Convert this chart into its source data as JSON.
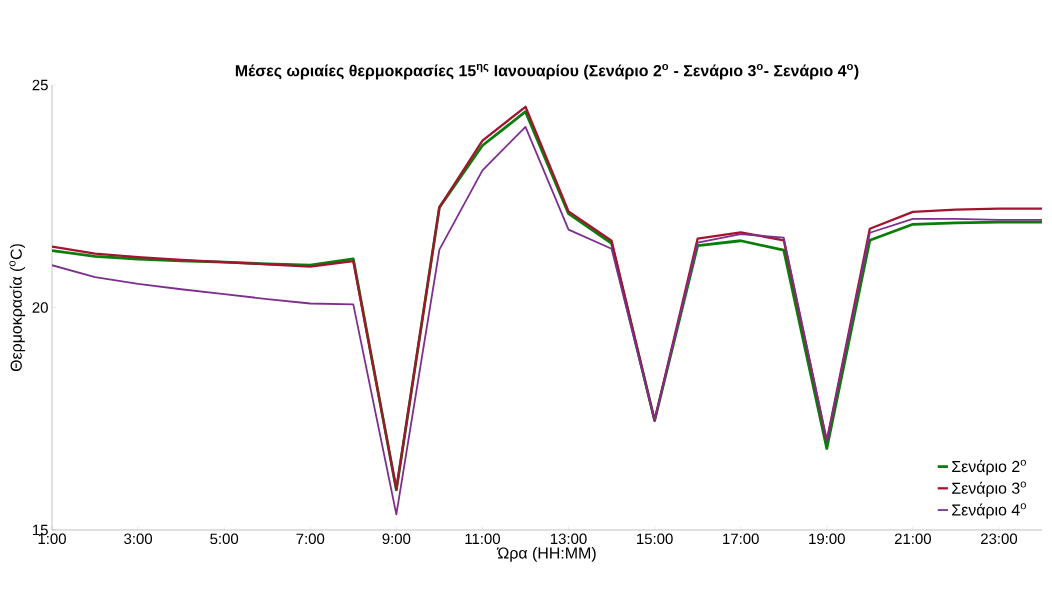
{
  "chart_data": {
    "type": "line",
    "title": "Μέσες ωριαίες θερμοκρασίες 15$^{ης}$ Ιανουαρίου (Σενάριο 2$^{o}$ - Σενάριο 3$^{o}$- Σενάριο 4$^{o}$)",
    "xlabel": "Ώρα (HH:MM)",
    "ylabel": "Θερμοκρασία ($^{o}$C)",
    "x": [
      1,
      2,
      3,
      4,
      5,
      6,
      7,
      8,
      9,
      10,
      11,
      12,
      13,
      14,
      15,
      16,
      17,
      18,
      19,
      20,
      21,
      22,
      23,
      24
    ],
    "series": [
      {
        "name": "Σενάριο 2$^{o}$",
        "color": "#0a7d0a",
        "values": [
          21.28,
          21.15,
          21.09,
          21.05,
          21.02,
          20.98,
          20.95,
          21.09,
          15.9,
          22.25,
          23.64,
          24.4,
          22.11,
          21.44,
          17.46,
          21.39,
          21.5,
          21.29,
          16.83,
          21.51,
          21.87,
          21.9,
          21.92,
          21.92
        ]
      },
      {
        "name": "Σενάριο 3$^{o}$",
        "color": "#a2142f",
        "values": [
          21.37,
          21.21,
          21.13,
          21.07,
          21.02,
          20.97,
          20.92,
          21.04,
          15.92,
          22.25,
          23.75,
          24.51,
          22.16,
          21.5,
          17.46,
          21.55,
          21.69,
          21.51,
          17.0,
          21.77,
          22.15,
          22.2,
          22.22,
          22.22
        ]
      },
      {
        "name": "Σενάριο 4$^{o}$",
        "color": "#7e2f8e",
        "values": [
          20.95,
          20.68,
          20.53,
          20.41,
          20.3,
          20.19,
          20.09,
          20.07,
          15.35,
          21.3,
          23.08,
          24.06,
          21.75,
          21.32,
          17.46,
          21.46,
          21.65,
          21.57,
          17.0,
          21.68,
          21.99,
          21.99,
          21.97,
          21.97
        ]
      }
    ],
    "xlim": [
      1,
      24
    ],
    "xticks": [
      {
        "value": 1,
        "label": "1:00"
      },
      {
        "value": 3,
        "label": "3:00"
      },
      {
        "value": 5,
        "label": "5:00"
      },
      {
        "value": 7,
        "label": "7:00"
      },
      {
        "value": 9,
        "label": "9:00"
      },
      {
        "value": 11,
        "label": "11:00"
      },
      {
        "value": 13,
        "label": "13:00"
      },
      {
        "value": 15,
        "label": "15:00"
      },
      {
        "value": 17,
        "label": "17:00"
      },
      {
        "value": 19,
        "label": "19:00"
      },
      {
        "value": 21,
        "label": "21:00"
      },
      {
        "value": 23,
        "label": "23:00"
      }
    ],
    "ylim": [
      15,
      25
    ],
    "yticks": [
      15,
      20,
      25
    ],
    "grid": false,
    "legend": "bottom right",
    "marker": "none",
    "line_style": "solid"
  }
}
